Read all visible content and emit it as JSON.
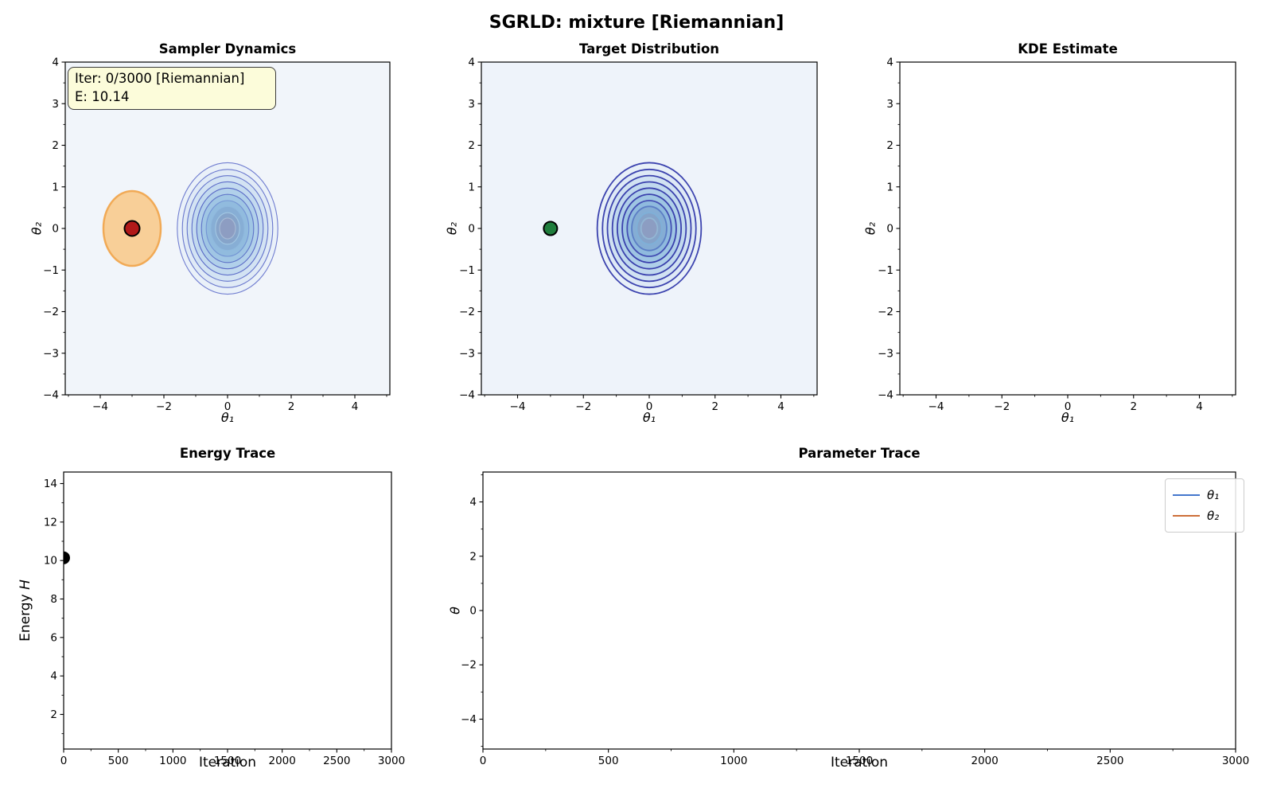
{
  "figure": {
    "title": "SGRLD: mixture [Riemannian]"
  },
  "chart_data": [
    {
      "id": "sampler_dynamics",
      "type": "contour",
      "title": "Sampler Dynamics",
      "xlabel": "θ₁",
      "ylabel": "θ₂",
      "xlim": [
        -5.1,
        5.1
      ],
      "ylim": [
        -4,
        4
      ],
      "xticks": [
        -4,
        -2,
        0,
        2,
        4
      ],
      "yticks": [
        4,
        3,
        2,
        1,
        0,
        -1,
        -2,
        -3,
        -4
      ],
      "xminor": [
        -5,
        -3,
        -1,
        1,
        3,
        5
      ],
      "yminor": [
        -3.5,
        -2.5,
        -1.5,
        -0.5,
        0.5,
        1.5,
        2.5,
        3.5
      ],
      "background": "#f1f5fa",
      "annotation": {
        "line1": "Iter: 0/3000 [Riemannian]",
        "line2": "E: 10.14"
      },
      "contour": {
        "center": [
          0,
          0
        ],
        "stroke_width": 1.1,
        "levels": [
          {
            "r": 1.58,
            "fill": "#eaf1f9",
            "stroke": "#707dd0"
          },
          {
            "r": 1.42,
            "fill": "#e0eaf6",
            "stroke": "#6977cd"
          },
          {
            "r": 1.27,
            "fill": "#d3e3f3",
            "stroke": "#6373cb"
          },
          {
            "r": 1.12,
            "fill": "#c3daef",
            "stroke": "#5e6ec9"
          },
          {
            "r": 0.97,
            "fill": "#b1d0ea",
            "stroke": "#5969c6"
          },
          {
            "r": 0.82,
            "fill": "#a0c6e4",
            "stroke": "#5f74c8"
          },
          {
            "r": 0.67,
            "fill": "#91bbde",
            "stroke": "#7495d4"
          },
          {
            "r": 0.53,
            "fill": "#87aed5",
            "stroke": "#8fb9de"
          },
          {
            "r": 0.38,
            "fill": "#86a4ca",
            "stroke": "#a3c8e3"
          },
          {
            "r": 0.25,
            "fill": "#8d9dc2",
            "stroke": "#a8bcd6"
          }
        ]
      },
      "proposal_ellipse": {
        "center": [
          -3,
          0
        ],
        "rx": 0.9,
        "ry": 0.9,
        "fill": "#f8cf98",
        "stroke": "#f1aa56",
        "stroke_width": 2.5
      },
      "markers": [
        {
          "x": -3,
          "y": 0,
          "r": 9.5,
          "fill": "#b11919",
          "stroke": "#000000",
          "stroke_width": 2,
          "name": "current-sample-marker"
        }
      ]
    },
    {
      "id": "target_distribution",
      "type": "contour",
      "title": "Target Distribution",
      "xlabel": "θ₁",
      "ylabel": "θ₂",
      "xlim": [
        -5.1,
        5.1
      ],
      "ylim": [
        -4,
        4
      ],
      "xticks": [
        -4,
        -2,
        0,
        2,
        4
      ],
      "yticks": [
        4,
        3,
        2,
        1,
        0,
        -1,
        -2,
        -3,
        -4
      ],
      "xminor": [
        -5,
        -3,
        -1,
        1,
        3,
        5
      ],
      "yminor": [
        -3.5,
        -2.5,
        -1.5,
        -0.5,
        0.5,
        1.5,
        2.5,
        3.5
      ],
      "background": "#eef3fa",
      "contour": {
        "center": [
          0,
          0
        ],
        "stroke_width": 1.8,
        "levels": [
          {
            "r": 1.58,
            "fill": "#e8f0f8",
            "stroke": "#3c43af"
          },
          {
            "r": 1.42,
            "fill": "#dee9f6",
            "stroke": "#3c43af"
          },
          {
            "r": 1.27,
            "fill": "#d1e2f2",
            "stroke": "#3b42ae"
          },
          {
            "r": 1.12,
            "fill": "#c1d9ee",
            "stroke": "#3b42ae"
          },
          {
            "r": 0.97,
            "fill": "#afcfe9",
            "stroke": "#3a41ad"
          },
          {
            "r": 0.82,
            "fill": "#9ec5e3",
            "stroke": "#3a41ad"
          },
          {
            "r": 0.67,
            "fill": "#8fbade",
            "stroke": "#444fb3"
          },
          {
            "r": 0.53,
            "fill": "#85add4",
            "stroke": "#5c7ec5"
          },
          {
            "r": 0.38,
            "fill": "#85a3c9",
            "stroke": "#7fb0d8"
          },
          {
            "r": 0.25,
            "fill": "#8c9dc2",
            "stroke": "#93b6d4"
          }
        ]
      },
      "markers": [
        {
          "x": -3,
          "y": 0,
          "r": 8.5,
          "fill": "#1f7d3c",
          "stroke": "#000000",
          "stroke_width": 2,
          "name": "mixture-mode-marker"
        }
      ]
    },
    {
      "id": "kde_estimate",
      "type": "contour",
      "title": "KDE Estimate",
      "xlabel": "θ₁",
      "ylabel": "θ₂",
      "xlim": [
        -5.1,
        5.1
      ],
      "ylim": [
        -4,
        4
      ],
      "xticks": [
        -4,
        -2,
        0,
        2,
        4
      ],
      "yticks": [
        4,
        3,
        2,
        1,
        0,
        -1,
        -2,
        -3,
        -4
      ],
      "xminor": [
        -5,
        -3,
        -1,
        1,
        3,
        5
      ],
      "yminor": [
        -3.5,
        -2.5,
        -1.5,
        -0.5,
        0.5,
        1.5,
        2.5,
        3.5
      ],
      "background": "#ffffff"
    },
    {
      "id": "energy_trace",
      "type": "scatter",
      "title": "Energy Trace",
      "xlabel": "Iteration",
      "ylabel_prefix": "Energy",
      "ylabel_var": "H",
      "xlim": [
        0,
        3000
      ],
      "ylim": [
        0.2,
        14.6
      ],
      "xticks": [
        0,
        500,
        1000,
        1500,
        2000,
        2500,
        3000
      ],
      "yticks": [
        2,
        4,
        6,
        8,
        10,
        12,
        14
      ],
      "xminor": [
        250,
        750,
        1250,
        1750,
        2250,
        2750
      ],
      "yminor": [
        1,
        3,
        5,
        7,
        9,
        11,
        13
      ],
      "background": "#ffffff",
      "points": [
        {
          "x": 0,
          "y": 10.14,
          "r": 8,
          "fill": "#000000",
          "name": "energy-point"
        }
      ]
    },
    {
      "id": "parameter_trace",
      "type": "line",
      "title": "Parameter Trace",
      "xlabel": "Iteration",
      "ylabel": "θ",
      "xlim": [
        0,
        3000
      ],
      "ylim": [
        -5.1,
        5.1
      ],
      "xticks": [
        0,
        500,
        1000,
        1500,
        2000,
        2500,
        3000
      ],
      "yticks": [
        4,
        2,
        0,
        -2,
        -4
      ],
      "xminor": [
        250,
        750,
        1250,
        1750,
        2250,
        2750
      ],
      "yminor": [
        -5,
        -3,
        -1,
        1,
        3,
        5
      ],
      "background": "#ffffff",
      "series": [
        {
          "label": "θ₁",
          "color": "#4477cd",
          "values": []
        },
        {
          "label": "θ₂",
          "color": "#cd6f39",
          "values": []
        }
      ]
    }
  ]
}
